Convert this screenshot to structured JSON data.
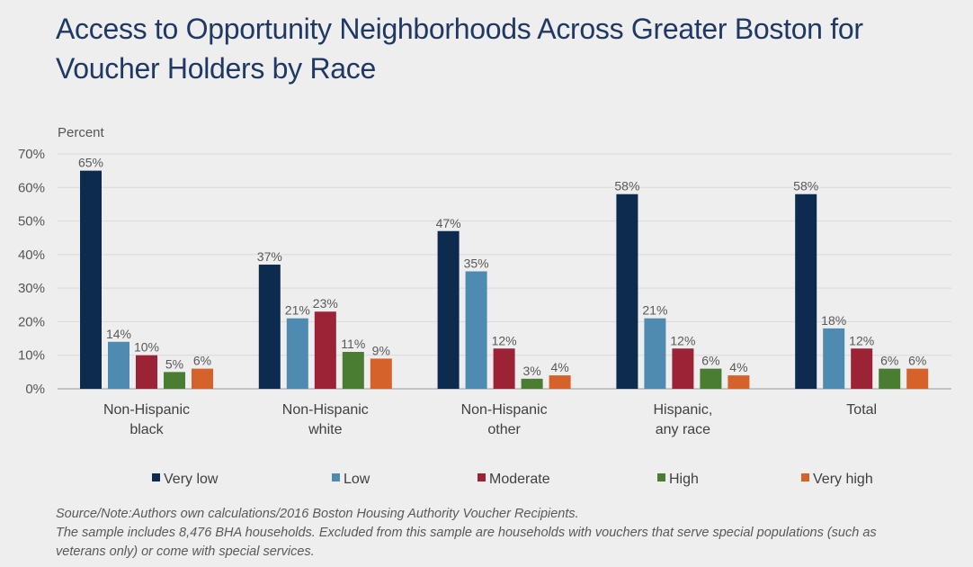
{
  "title": "Access to Opportunity Neighborhoods Across Greater Boston for Voucher Holders by Race",
  "chart_data": {
    "type": "bar",
    "ylabel": "Percent",
    "ylim": [
      0,
      70
    ],
    "yticks": [
      "0%",
      "10%",
      "20%",
      "30%",
      "40%",
      "50%",
      "60%",
      "70%"
    ],
    "grid": true,
    "legend": "bottom",
    "categories": [
      [
        "Non-Hispanic",
        "black"
      ],
      [
        "Non-Hispanic",
        "white"
      ],
      [
        "Non-Hispanic",
        "other"
      ],
      [
        "Hispanic,",
        "any race"
      ],
      [
        "Total"
      ]
    ],
    "series": [
      {
        "name": "Very low",
        "color": "#0d2a4f",
        "values": [
          65,
          37,
          47,
          58,
          58
        ],
        "labels": [
          "65%",
          "37%",
          "47%",
          "58%",
          "58%"
        ]
      },
      {
        "name": "Low",
        "color": "#4f8bb0",
        "values": [
          14,
          21,
          35,
          21,
          18
        ],
        "labels": [
          "14%",
          "21%",
          "35%",
          "21%",
          "18%"
        ]
      },
      {
        "name": "Moderate",
        "color": "#9b2335",
        "values": [
          10,
          23,
          12,
          12,
          12
        ],
        "labels": [
          "10%",
          "23%",
          "12%",
          "12%",
          "12%"
        ]
      },
      {
        "name": "High",
        "color": "#4a7d32",
        "values": [
          5,
          11,
          3,
          6,
          6
        ],
        "labels": [
          "5%",
          "11%",
          "3%",
          "6%",
          "6%"
        ]
      },
      {
        "name": "Very high",
        "color": "#d4622a",
        "values": [
          6,
          9,
          4,
          4,
          6
        ],
        "labels": [
          "6%",
          "9%",
          "4%",
          "4%",
          "6%"
        ]
      }
    ]
  },
  "notes": [
    "Source/Note:Authors own calculations/2016 Boston Housing Authority Voucher Recipients.",
    "The sample includes 8,476 BHA households. Excluded from this sample are households with vouchers that serve special populations (such as",
    "veterans only) or come with special services."
  ]
}
